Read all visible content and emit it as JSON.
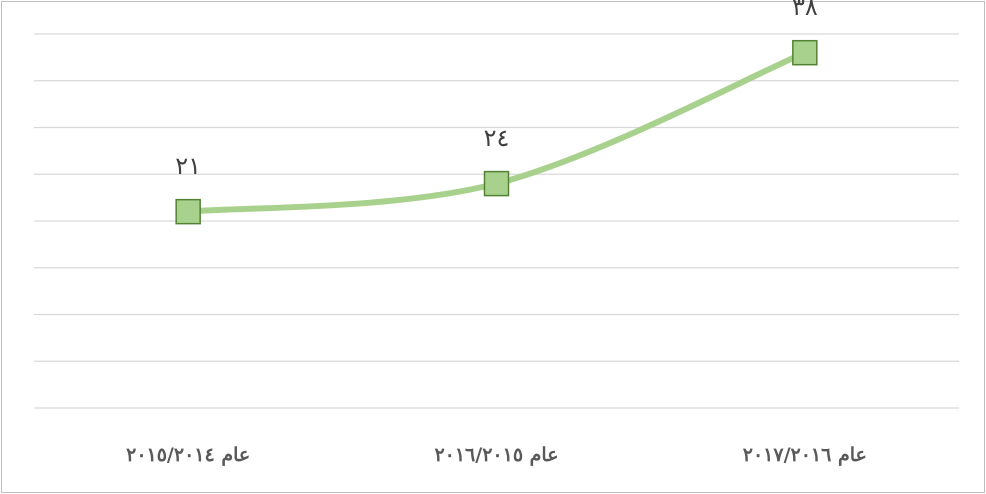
{
  "chart_data": {
    "type": "line",
    "categories": [
      "عام ٢٠١٥/٢٠١٤",
      "عام ٢٠١٦/٢٠١٥",
      "عام ٢٠١٧/٢٠١٦"
    ],
    "values": [
      21,
      24,
      38
    ],
    "value_labels": [
      "٢١",
      "٢٤",
      "٣٨"
    ],
    "color": "#a9d18e",
    "marker_edge_color": "#548235",
    "ylim": [
      0,
      40
    ],
    "yticks": [
      0,
      5,
      10,
      15,
      20,
      25,
      30,
      35,
      40
    ],
    "grid": true
  }
}
